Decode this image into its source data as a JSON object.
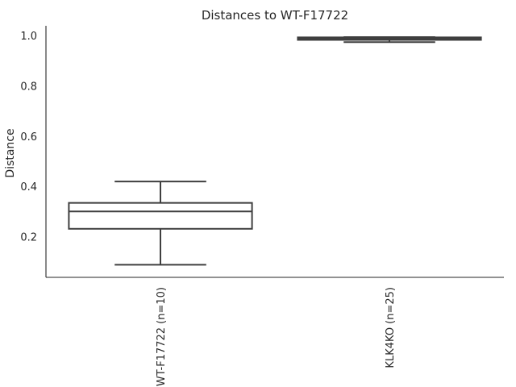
{
  "chart_data": {
    "type": "box",
    "title": "Distances to WT-F17722",
    "ylabel": "Distance",
    "xlabel": "",
    "ylim": [
      0.04,
      1.04
    ],
    "yticks": [
      0.2,
      0.4,
      0.6,
      0.8,
      1.0
    ],
    "grid": false,
    "categories": [
      "WT-F17722 (n=10)",
      "KLK4KO (n=25)"
    ],
    "boxes": [
      {
        "category": "WT-F17722 (n=10)",
        "whisker_low": 0.09,
        "q1": 0.233,
        "median": 0.302,
        "q3": 0.336,
        "whisker_high": 0.421
      },
      {
        "category": "KLK4KO (n=25)",
        "whisker_low": 0.975,
        "q1": 0.984,
        "median": 0.989,
        "q3": 0.994,
        "whisker_high": 0.995
      }
    ],
    "colors": {
      "stroke": "#3f3f3f",
      "text": "#262626",
      "axis": "#262626"
    }
  }
}
